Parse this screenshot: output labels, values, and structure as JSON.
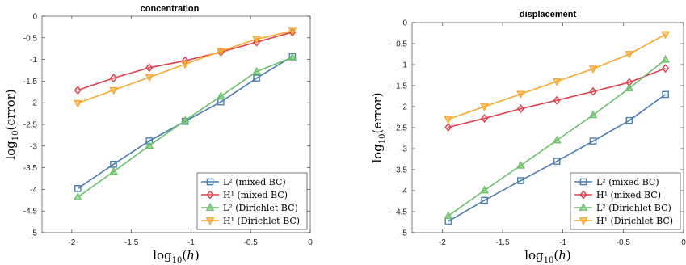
{
  "chart_data": [
    {
      "type": "line",
      "title": "concentration",
      "xlabel": "log10(h)",
      "ylabel": "log10(error)",
      "xlim": [
        -2.25,
        0
      ],
      "ylim": [
        -5,
        0
      ],
      "xticks": [
        "-2",
        "-1.5",
        "-1",
        "-0.5",
        "0"
      ],
      "yticks": [
        "0",
        "-0.5",
        "-1",
        "-1.5",
        "-2",
        "-2.5",
        "-3",
        "-3.5",
        "-4",
        "-4.5",
        "-5"
      ],
      "x": [
        -1.95,
        -1.65,
        -1.35,
        -1.05,
        -0.75,
        -0.45,
        -0.15
      ],
      "legend_position": "bottom-right",
      "series": [
        {
          "name": "L² (mixed BC)",
          "marker": "square",
          "color": "#4a7cb0",
          "values": [
            -3.98,
            -3.42,
            -2.88,
            -2.43,
            -1.98,
            -1.43,
            -0.93
          ]
        },
        {
          "name": "H¹ (mixed BC)",
          "marker": "diamond",
          "color": "#e0404a",
          "values": [
            -1.71,
            -1.43,
            -1.19,
            -1.03,
            -0.83,
            -0.6,
            -0.37
          ]
        },
        {
          "name": "L² (Dirichlet BC)",
          "marker": "triangle-up",
          "color": "#6cc06a",
          "values": [
            -4.18,
            -3.59,
            -2.99,
            -2.41,
            -1.85,
            -1.28,
            -0.95
          ]
        },
        {
          "name": "H¹ (Dirichlet BC)",
          "marker": "triangle-down",
          "color": "#f6a830",
          "values": [
            -2.01,
            -1.71,
            -1.41,
            -1.11,
            -0.81,
            -0.53,
            -0.34
          ]
        }
      ]
    },
    {
      "type": "line",
      "title": "displacement",
      "xlabel": "log10(h)",
      "ylabel": "log10(error)",
      "xlim": [
        -2.25,
        0
      ],
      "ylim": [
        -5,
        0
      ],
      "xticks": [
        "-2",
        "-1.5",
        "-1",
        "-0.5",
        "0"
      ],
      "yticks": [
        "0",
        "-0.5",
        "-1",
        "-1.5",
        "-2",
        "-2.5",
        "-3",
        "-3.5",
        "-4",
        "-4.5",
        "-5"
      ],
      "x": [
        -1.95,
        -1.65,
        -1.35,
        -1.05,
        -0.75,
        -0.45,
        -0.15
      ],
      "legend_position": "bottom-right",
      "series": [
        {
          "name": "L² (mixed BC)",
          "marker": "square",
          "color": "#4a7cb0",
          "values": [
            -4.73,
            -4.23,
            -3.76,
            -3.3,
            -2.82,
            -2.33,
            -1.71
          ]
        },
        {
          "name": "H¹ (mixed BC)",
          "marker": "diamond",
          "color": "#e0404a",
          "values": [
            -2.49,
            -2.28,
            -2.05,
            -1.85,
            -1.64,
            -1.42,
            -1.09
          ]
        },
        {
          "name": "L² (Dirichlet BC)",
          "marker": "triangle-up",
          "color": "#6cc06a",
          "values": [
            -4.6,
            -3.99,
            -3.4,
            -2.8,
            -2.2,
            -1.56,
            -0.88
          ]
        },
        {
          "name": "H¹ (Dirichlet BC)",
          "marker": "triangle-down",
          "color": "#f6a830",
          "values": [
            -2.3,
            -2.0,
            -1.7,
            -1.4,
            -1.1,
            -0.75,
            -0.28
          ]
        }
      ]
    }
  ]
}
